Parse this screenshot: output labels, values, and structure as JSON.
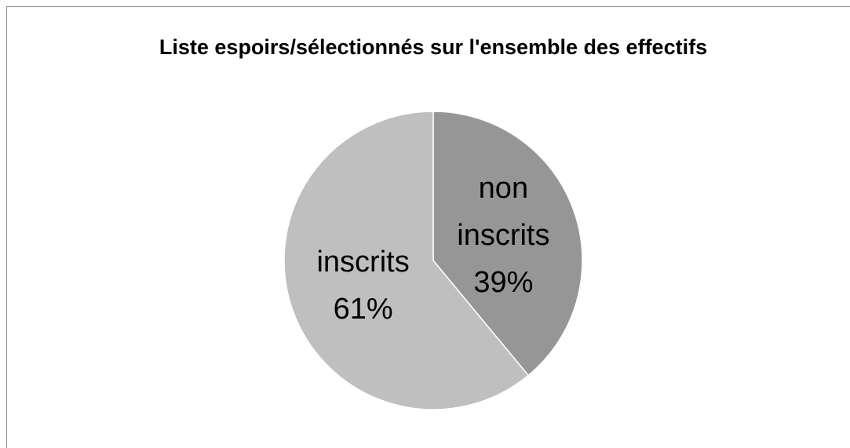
{
  "chart_data": {
    "type": "pie",
    "title": "Liste espoirs/sélectionnés sur l'ensemble des effectifs",
    "categories": [
      "non inscrits",
      "inscrits"
    ],
    "values": [
      39,
      61
    ],
    "value_labels": [
      "39%",
      "61%"
    ],
    "colors": [
      "#969696",
      "#bfbfbf"
    ]
  }
}
